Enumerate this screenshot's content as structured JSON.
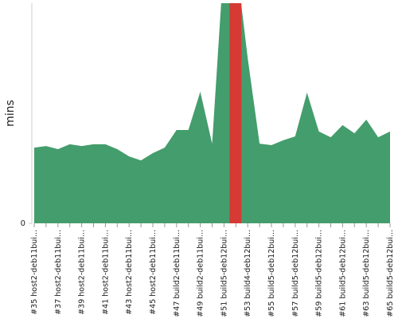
{
  "chart_data": {
    "type": "area",
    "y_label": "mins",
    "color": "#449d6c",
    "categories": [
      "#35 host2-deb11bui...",
      null,
      "#37 host2-deb11bui...",
      null,
      "#39 host2-deb11bui...",
      null,
      "#41 host2-deb11bui...",
      null,
      "#43 host2-deb11bui...",
      null,
      "#45 host2-deb11bui...",
      null,
      "#47 build2-deb11bui...",
      null,
      "#49 build2-deb11bui...",
      null,
      "#51 build5-deb12bui...",
      null,
      "#53 build4-deb12bui...",
      null,
      "#55 build5-deb12bui...",
      null,
      "#57 build5-deb12bui...",
      null,
      "#59 build5-deb12bui...",
      null,
      "#61 build5-deb12bui...",
      null,
      "#63 build5-deb12bui...",
      null,
      "#65 build5-deb12bui..."
    ],
    "values": [
      34.4,
      35.1,
      33.7,
      35.9,
      35.1,
      35.9,
      35.9,
      33.7,
      30.4,
      28.6,
      31.9,
      34.4,
      42.4,
      42.4,
      59.8,
      36.2,
      120,
      120,
      75,
      36.2,
      35.5,
      37.7,
      39.5,
      59.4,
      41.7,
      39.1,
      44.6,
      40.9,
      47.1,
      39.1,
      41.7
    ],
    "ylim": [
      0,
      100
    ],
    "yticks": [
      0
    ]
  }
}
